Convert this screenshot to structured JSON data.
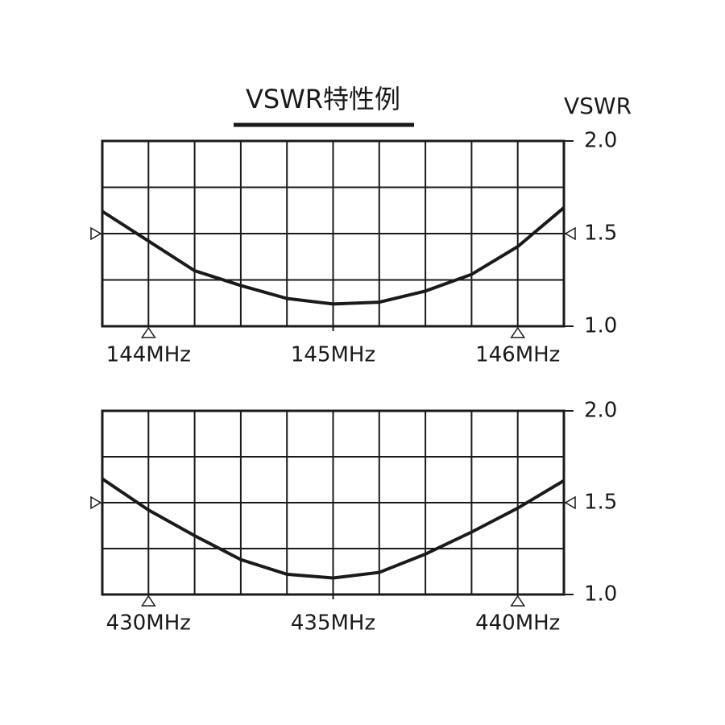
{
  "title": "VSWR特性例",
  "y_label": "VSWR",
  "chart_data": [
    {
      "type": "line",
      "x": [
        143.75,
        144,
        144.25,
        144.5,
        144.75,
        145,
        145.25,
        145.5,
        145.75,
        146,
        146.25
      ],
      "values": [
        1.62,
        1.46,
        1.3,
        1.22,
        1.15,
        1.12,
        1.13,
        1.19,
        1.28,
        1.43,
        1.64
      ],
      "color": "#1a1a1a",
      "xlim": [
        143.75,
        146.25
      ],
      "xticks": [
        {
          "value": 144,
          "label": "144MHz"
        },
        {
          "value": 145,
          "label": "145MHz"
        },
        {
          "value": 146,
          "label": "146MHz"
        }
      ],
      "xgrid": [
        143.75,
        144,
        144.25,
        144.5,
        144.75,
        145,
        145.25,
        145.5,
        145.75,
        146,
        146.25
      ],
      "ylim": [
        1,
        2
      ],
      "yticks": [
        {
          "value": 1,
          "label": "1.0"
        },
        {
          "value": 1.5,
          "label": "1.5"
        },
        {
          "value": 2,
          "label": "2.0"
        }
      ],
      "ygrid": [
        1,
        1.25,
        1.5,
        1.75,
        2
      ]
    },
    {
      "type": "line",
      "x": [
        428.75,
        430,
        431.25,
        432.5,
        433.75,
        435,
        436.25,
        437.5,
        438.75,
        440,
        441.25
      ],
      "values": [
        1.63,
        1.46,
        1.32,
        1.19,
        1.11,
        1.09,
        1.12,
        1.22,
        1.34,
        1.47,
        1.62
      ],
      "color": "#1a1a1a",
      "xlim": [
        428.75,
        441.25
      ],
      "xticks": [
        {
          "value": 430,
          "label": "430MHz"
        },
        {
          "value": 435,
          "label": "435MHz"
        },
        {
          "value": 440,
          "label": "440MHz"
        }
      ],
      "xgrid": [
        428.75,
        430,
        431.25,
        432.5,
        433.75,
        435,
        436.25,
        437.5,
        438.75,
        440,
        441.25
      ],
      "ylim": [
        1,
        2
      ],
      "yticks": [
        {
          "value": 1,
          "label": "1.0"
        },
        {
          "value": 1.5,
          "label": "1.5"
        },
        {
          "value": 2,
          "label": "2.0"
        }
      ],
      "ygrid": [
        1,
        1.25,
        1.5,
        1.75,
        2
      ]
    }
  ]
}
